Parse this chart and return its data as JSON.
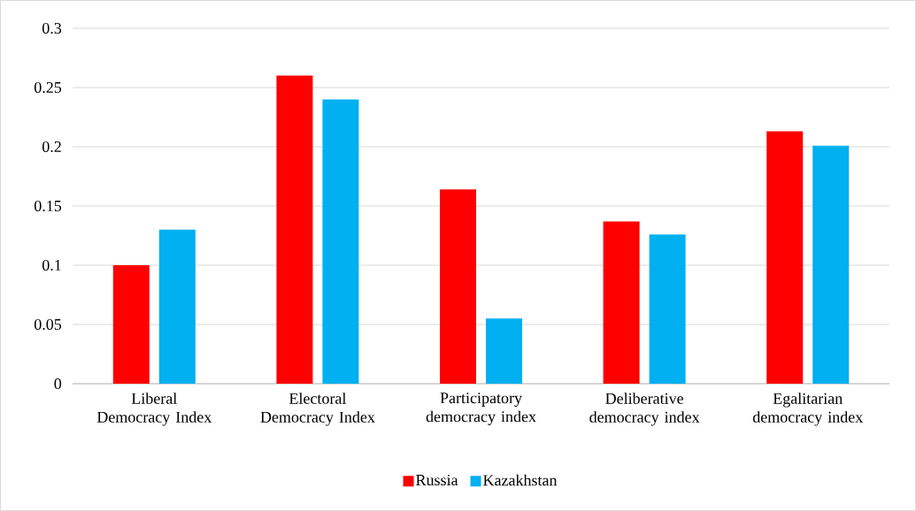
{
  "chart_data": {
    "type": "bar",
    "categories": [
      "Liberal Democracy Index",
      "Electoral Democracy Index",
      "Participatory democracy index",
      "Deliberative democracy index",
      "Egalitarian democracy index"
    ],
    "series": [
      {
        "name": "Russia",
        "color": "#ff0000",
        "values": [
          0.1,
          0.26,
          0.164,
          0.137,
          0.213
        ]
      },
      {
        "name": "Kazakhstan",
        "color": "#00b0f0",
        "values": [
          0.13,
          0.24,
          0.055,
          0.126,
          0.201
        ]
      }
    ],
    "ylim": [
      0,
      0.3
    ],
    "yticks": [
      0,
      0.05,
      0.1,
      0.15,
      0.2,
      0.25,
      0.3
    ],
    "grid": "y",
    "legend": "bottom"
  }
}
